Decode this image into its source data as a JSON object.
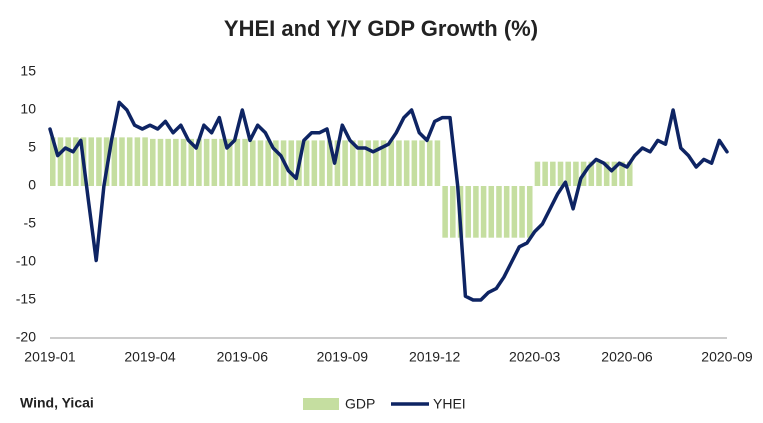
{
  "chart_data": {
    "type": "bar_line",
    "title": "YHEI and Y/Y GDP Growth (%)",
    "source": "Wind, Yicai",
    "categories": [
      "2019-01",
      null,
      null,
      null,
      null,
      null,
      null,
      null,
      null,
      null,
      null,
      null,
      null,
      "2019-04",
      null,
      null,
      null,
      null,
      null,
      null,
      null,
      null,
      null,
      null,
      null,
      "2019-06",
      null,
      null,
      null,
      null,
      null,
      null,
      null,
      null,
      null,
      null,
      null,
      null,
      "2019-09",
      null,
      null,
      null,
      null,
      null,
      null,
      null,
      null,
      null,
      null,
      null,
      "2019-12",
      null,
      null,
      null,
      null,
      null,
      null,
      null,
      null,
      null,
      null,
      null,
      null,
      "2020-03",
      null,
      null,
      null,
      null,
      null,
      null,
      null,
      null,
      null,
      null,
      null,
      "2020-06",
      null,
      null,
      null,
      null,
      null,
      null,
      null,
      null,
      null,
      null,
      null,
      null,
      "2020-09"
    ],
    "series": [
      {
        "name": "GDP",
        "type": "bar",
        "color": "#c5dea0",
        "values": [
          6.4,
          6.4,
          6.4,
          6.4,
          6.4,
          6.4,
          6.4,
          6.4,
          6.4,
          6.4,
          6.4,
          6.4,
          6.4,
          6.2,
          6.2,
          6.2,
          6.2,
          6.2,
          6.2,
          6.2,
          6.2,
          6.2,
          6.2,
          6.2,
          6.2,
          6.2,
          6.0,
          6.0,
          6.0,
          6.0,
          6.0,
          6.0,
          6.0,
          6.0,
          6.0,
          6.0,
          6.0,
          6.0,
          6.0,
          6.0,
          6.0,
          6.0,
          6.0,
          6.0,
          6.0,
          6.0,
          6.0,
          6.0,
          6.0,
          6.0,
          6.0,
          -6.8,
          -6.8,
          -6.8,
          -6.8,
          -6.8,
          -6.8,
          -6.8,
          -6.8,
          -6.8,
          -6.8,
          -6.8,
          -6.8,
          3.2,
          3.2,
          3.2,
          3.2,
          3.2,
          3.2,
          3.2,
          3.2,
          3.2,
          3.2,
          3.2,
          3.2,
          3.2,
          null,
          null,
          null,
          null,
          null,
          null,
          null,
          null,
          null,
          null,
          null,
          null,
          null
        ]
      },
      {
        "name": "YHEI",
        "type": "line",
        "color": "#0e2463",
        "values": [
          7.5,
          4,
          5,
          4.5,
          6,
          -2,
          -9.8,
          0,
          6,
          11,
          10,
          8,
          7.5,
          8,
          7.5,
          8.5,
          7,
          8,
          6,
          5,
          8,
          7,
          9,
          5,
          6,
          10,
          6,
          8,
          7,
          5,
          4,
          2,
          1,
          6,
          7,
          7,
          7.5,
          3,
          8,
          6,
          5,
          5,
          4.5,
          5,
          5.5,
          7,
          9,
          10,
          7,
          6,
          8.5,
          9,
          9,
          0,
          -14.5,
          -15,
          -15,
          -14,
          -13.5,
          -12,
          -10,
          -8,
          -7.5,
          -6,
          -5,
          -3,
          -1,
          0.5,
          -3,
          1,
          2.5,
          3.5,
          3,
          2,
          3,
          2.5,
          4,
          5,
          4.5,
          6,
          5.5,
          10,
          5,
          4,
          2.5,
          3.5,
          3,
          6,
          4.5
        ]
      }
    ],
    "ylim": [
      -20,
      15
    ],
    "yticks": [
      -20,
      -15,
      -10,
      -5,
      0,
      5,
      10,
      15
    ],
    "grid": false,
    "legend": "bottom"
  }
}
